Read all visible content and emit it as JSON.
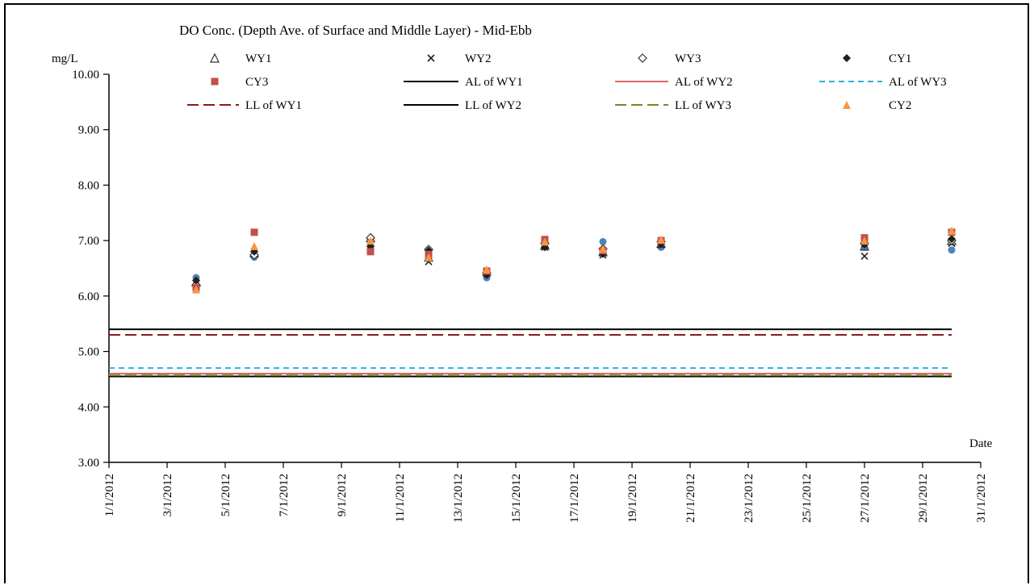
{
  "chart_data": {
    "type": "scatter",
    "title": "DO Conc. (Depth Ave. of Surface and Middle Layer) - Mid-Ebb",
    "ylabel": "mg/L",
    "xlabel": "Date",
    "ylim": [
      3.0,
      10.0
    ],
    "y_ticks": [
      "3.00",
      "4.00",
      "5.00",
      "6.00",
      "7.00",
      "8.00",
      "9.00",
      "10.00"
    ],
    "x_ticks": [
      "1/1/2012",
      "3/1/2012",
      "5/1/2012",
      "7/1/2012",
      "9/1/2012",
      "11/1/2012",
      "13/1/2012",
      "15/1/2012",
      "17/1/2012",
      "19/1/2012",
      "21/1/2012",
      "23/1/2012",
      "25/1/2012",
      "27/1/2012",
      "29/1/2012",
      "31/1/2012"
    ],
    "x_range": [
      "1/1/2012",
      "31/1/2012"
    ],
    "grid": false,
    "legend_position": "top",
    "x": [
      "4/1/2012",
      "6/1/2012",
      "10/1/2012",
      "12/1/2012",
      "14/1/2012",
      "16/1/2012",
      "18/1/2012",
      "20/1/2012",
      "27/1/2012",
      "30/1/2012"
    ],
    "series": [
      {
        "name": "WY1",
        "marker": "triangle-open",
        "color": "#333333",
        "values": [
          6.25,
          6.78,
          7.05,
          6.7,
          6.45,
          6.92,
          6.8,
          6.95,
          6.9,
          7.0
        ]
      },
      {
        "name": "WY2",
        "marker": "cross",
        "color": "#222222",
        "values": [
          6.17,
          6.76,
          6.85,
          6.62,
          6.4,
          6.88,
          6.74,
          6.92,
          6.72,
          6.95
        ]
      },
      {
        "name": "WY3",
        "marker": "diamond-open",
        "color": "#333333",
        "values": [
          6.2,
          6.74,
          7.05,
          6.84,
          6.42,
          6.95,
          6.85,
          6.98,
          6.95,
          7.0
        ]
      },
      {
        "name": "CY1",
        "marker": "diamond",
        "color": "#1f1f1f",
        "values": [
          6.28,
          6.8,
          6.9,
          6.82,
          6.38,
          6.88,
          6.76,
          6.94,
          6.93,
          7.03
        ]
      },
      {
        "name": "CY3",
        "marker": "square",
        "color": "#c0504d",
        "values": [
          6.15,
          7.15,
          6.8,
          6.75,
          6.45,
          7.02,
          6.82,
          7.0,
          7.05,
          7.15
        ]
      },
      {
        "name": "CY2",
        "marker": "triangle",
        "color": "#f79646",
        "values": [
          6.12,
          6.9,
          7.0,
          6.7,
          6.48,
          6.98,
          6.85,
          7.02,
          7.0,
          7.18
        ]
      }
    ],
    "extra_points": {
      "color": "#4f81bd",
      "values": [
        6.33,
        6.7,
        6.88,
        6.78,
        6.33,
        6.93,
        6.98,
        6.88,
        6.88,
        6.83
      ]
    },
    "lines": [
      {
        "name": "AL of WY1",
        "value": 5.4,
        "style": "solid",
        "color": "#000000"
      },
      {
        "name": "AL of WY2",
        "value": 4.6,
        "style": "solid",
        "color": "#e06666"
      },
      {
        "name": "AL of WY3",
        "value": 4.7,
        "style": "dashed",
        "color": "#31b0d8"
      },
      {
        "name": "LL of WY1",
        "value": 5.3,
        "style": "longdash",
        "color": "#8b1a1a"
      },
      {
        "name": "LL of WY2",
        "value": 4.55,
        "style": "solid",
        "color": "#000000"
      },
      {
        "name": "LL of WY3",
        "value": 4.57,
        "style": "longdash",
        "color": "#6b8e23"
      }
    ],
    "legend_order": [
      "WY1",
      "WY2",
      "WY3",
      "CY1",
      "CY3",
      "AL of WY1",
      "AL of WY2",
      "AL of WY3",
      "LL of WY1",
      "LL of WY2",
      "LL of WY3",
      "CY2"
    ]
  }
}
